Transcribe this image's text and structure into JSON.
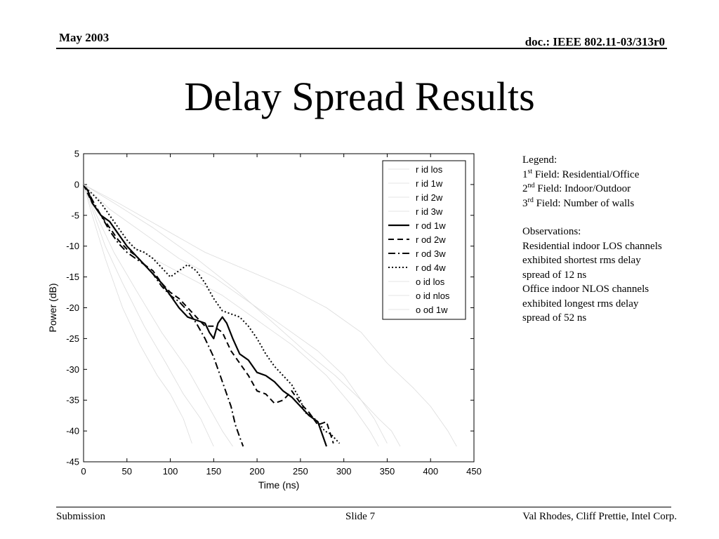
{
  "header": {
    "date": "May 2003",
    "doc": "doc.: IEEE 802.11-03/313r0"
  },
  "title": "Delay Spread Results",
  "notes": {
    "legend_heading": "Legend:",
    "fields": [
      {
        "ord": "1",
        "suffix": "st",
        "text": " Field: Residential/Office"
      },
      {
        "ord": "2",
        "suffix": "nd",
        "text": " Field: Indoor/Outdoor"
      },
      {
        "ord": "3",
        "suffix": "rd",
        "text": " Field: Number of walls"
      }
    ],
    "observations_heading": "Observations:",
    "observations": [
      "Residential indoor LOS channels",
      "exhibited shortest rms delay",
      "spread of 12 ns",
      "Office indoor NLOS channels",
      "exhibited longest rms delay",
      "spread of 52 ns"
    ]
  },
  "footer": {
    "left": "Submission",
    "center": "Slide 7",
    "right": "Val Rhodes, Cliff Prettie, Intel Corp."
  },
  "chart_data": {
    "type": "line",
    "xlabel": "Time (ns)",
    "ylabel": "Power (dB)",
    "xlim": [
      0,
      450
    ],
    "ylim": [
      -45,
      5
    ],
    "xticks": [
      0,
      50,
      100,
      150,
      200,
      250,
      300,
      350,
      400,
      450
    ],
    "yticks": [
      5,
      0,
      -5,
      -10,
      -15,
      -20,
      -25,
      -30,
      -35,
      -40,
      -45
    ],
    "grid": false,
    "legend_position": "top-right",
    "series": [
      {
        "name": "r id los",
        "color": "#dcdcdc",
        "dash": "solid",
        "width": 0.8,
        "points": [
          [
            0,
            0
          ],
          [
            10,
            -5
          ],
          [
            25,
            -12
          ],
          [
            45,
            -20
          ],
          [
            65,
            -26
          ],
          [
            85,
            -31
          ],
          [
            100,
            -34
          ],
          [
            115,
            -38
          ],
          [
            125,
            -42
          ]
        ]
      },
      {
        "name": "r id 1w",
        "color": "#dcdcdc",
        "dash": "solid",
        "width": 0.8,
        "points": [
          [
            0,
            0
          ],
          [
            10,
            -4
          ],
          [
            25,
            -10
          ],
          [
            45,
            -16
          ],
          [
            70,
            -23
          ],
          [
            95,
            -29
          ],
          [
            115,
            -34
          ],
          [
            135,
            -38
          ],
          [
            150,
            -42.5
          ]
        ]
      },
      {
        "name": "r id 2w",
        "color": "#dcdcdc",
        "dash": "solid",
        "width": 0.8,
        "points": [
          [
            0,
            0
          ],
          [
            15,
            -5
          ],
          [
            35,
            -11
          ],
          [
            60,
            -17
          ],
          [
            90,
            -24
          ],
          [
            120,
            -30
          ],
          [
            140,
            -35
          ],
          [
            160,
            -40
          ],
          [
            172,
            -42.5
          ]
        ]
      },
      {
        "name": "r id 3w",
        "color": "#dcdcdc",
        "dash": "solid",
        "width": 0.8,
        "points": [
          [
            0,
            0
          ],
          [
            20,
            -5
          ],
          [
            45,
            -9
          ],
          [
            80,
            -12
          ],
          [
            120,
            -15
          ],
          [
            160,
            -18
          ],
          [
            200,
            -22
          ],
          [
            240,
            -26
          ],
          [
            280,
            -31
          ],
          [
            310,
            -36
          ],
          [
            330,
            -40
          ],
          [
            340,
            -42.5
          ]
        ]
      },
      {
        "name": "r od 1w",
        "color": "#000000",
        "dash": "solid",
        "width": 2.2,
        "points": [
          [
            0,
            0
          ],
          [
            5,
            -1
          ],
          [
            10,
            -3
          ],
          [
            20,
            -5
          ],
          [
            30,
            -6
          ],
          [
            40,
            -8
          ],
          [
            50,
            -10
          ],
          [
            60,
            -11.5
          ],
          [
            70,
            -13
          ],
          [
            80,
            -14.5
          ],
          [
            90,
            -16
          ],
          [
            100,
            -18
          ],
          [
            110,
            -20
          ],
          [
            120,
            -21.5
          ],
          [
            130,
            -22
          ],
          [
            140,
            -22.5
          ],
          [
            145,
            -24
          ],
          [
            150,
            -25
          ],
          [
            155,
            -22.5
          ],
          [
            160,
            -21.5
          ],
          [
            165,
            -22.5
          ],
          [
            172,
            -25
          ],
          [
            180,
            -27.5
          ],
          [
            190,
            -28.5
          ],
          [
            200,
            -30.5
          ],
          [
            210,
            -31
          ],
          [
            220,
            -32
          ],
          [
            230,
            -33.5
          ],
          [
            240,
            -34.5
          ],
          [
            250,
            -36
          ],
          [
            260,
            -37.5
          ],
          [
            270,
            -38.5
          ],
          [
            280,
            -42.5
          ]
        ]
      },
      {
        "name": "r od 2w",
        "color": "#000000",
        "dash": "8,5",
        "width": 2,
        "points": [
          [
            0,
            0
          ],
          [
            5,
            -1.5
          ],
          [
            10,
            -3
          ],
          [
            20,
            -5
          ],
          [
            30,
            -7
          ],
          [
            40,
            -9
          ],
          [
            50,
            -10.5
          ],
          [
            60,
            -11.5
          ],
          [
            70,
            -13
          ],
          [
            80,
            -14
          ],
          [
            90,
            -16
          ],
          [
            100,
            -17.5
          ],
          [
            110,
            -18.5
          ],
          [
            120,
            -20
          ],
          [
            130,
            -21.5
          ],
          [
            140,
            -23
          ],
          [
            150,
            -23
          ],
          [
            160,
            -24
          ],
          [
            170,
            -27
          ],
          [
            180,
            -29
          ],
          [
            190,
            -31
          ],
          [
            200,
            -33.5
          ],
          [
            210,
            -34
          ],
          [
            220,
            -35.5
          ],
          [
            230,
            -35
          ],
          [
            240,
            -33.5
          ],
          [
            250,
            -35.5
          ],
          [
            260,
            -37
          ],
          [
            270,
            -39
          ],
          [
            280,
            -38.5
          ],
          [
            288,
            -42
          ]
        ]
      },
      {
        "name": "r od 3w",
        "color": "#000000",
        "dash": "10,4,2,4",
        "width": 2,
        "points": [
          [
            0,
            0
          ],
          [
            5,
            -1
          ],
          [
            10,
            -2.5
          ],
          [
            20,
            -5
          ],
          [
            30,
            -7.5
          ],
          [
            40,
            -9.5
          ],
          [
            50,
            -11
          ],
          [
            60,
            -12
          ],
          [
            70,
            -13
          ],
          [
            80,
            -14.5
          ],
          [
            90,
            -16.5
          ],
          [
            100,
            -18
          ],
          [
            110,
            -19
          ],
          [
            120,
            -20.5
          ],
          [
            130,
            -22.5
          ],
          [
            140,
            -25
          ],
          [
            150,
            -28
          ],
          [
            160,
            -32
          ],
          [
            170,
            -36
          ],
          [
            175,
            -39
          ],
          [
            180,
            -41
          ],
          [
            184,
            -42.5
          ]
        ]
      },
      {
        "name": "r od 4w",
        "color": "#000000",
        "dash": "2,3",
        "width": 2,
        "points": [
          [
            0,
            0
          ],
          [
            10,
            -1.5
          ],
          [
            20,
            -3
          ],
          [
            30,
            -5
          ],
          [
            40,
            -7
          ],
          [
            50,
            -9
          ],
          [
            60,
            -10.5
          ],
          [
            70,
            -11
          ],
          [
            80,
            -12
          ],
          [
            90,
            -13.5
          ],
          [
            100,
            -15
          ],
          [
            110,
            -14
          ],
          [
            120,
            -13
          ],
          [
            130,
            -14
          ],
          [
            140,
            -16
          ],
          [
            150,
            -18.5
          ],
          [
            160,
            -20.5
          ],
          [
            170,
            -21
          ],
          [
            180,
            -21.5
          ],
          [
            190,
            -23
          ],
          [
            200,
            -25
          ],
          [
            210,
            -27.5
          ],
          [
            220,
            -29.5
          ],
          [
            230,
            -31
          ],
          [
            240,
            -32.5
          ],
          [
            250,
            -35
          ],
          [
            255,
            -37
          ],
          [
            262,
            -37.5
          ],
          [
            270,
            -38.5
          ],
          [
            278,
            -40
          ],
          [
            285,
            -40.5
          ],
          [
            295,
            -42
          ]
        ]
      },
      {
        "name": "o id los",
        "color": "#dcdcdc",
        "dash": "solid",
        "width": 0.8,
        "points": [
          [
            0,
            0
          ],
          [
            30,
            -4
          ],
          [
            70,
            -8
          ],
          [
            110,
            -12
          ],
          [
            150,
            -15
          ],
          [
            190,
            -19
          ],
          [
            230,
            -23
          ],
          [
            270,
            -27
          ],
          [
            300,
            -31
          ],
          [
            320,
            -35
          ],
          [
            335,
            -38
          ],
          [
            350,
            -42
          ]
        ]
      },
      {
        "name": "o id nlos",
        "color": "#dcdcdc",
        "dash": "solid",
        "width": 0.8,
        "points": [
          [
            0,
            0
          ],
          [
            40,
            -3
          ],
          [
            90,
            -7
          ],
          [
            140,
            -11
          ],
          [
            190,
            -14
          ],
          [
            240,
            -17
          ],
          [
            280,
            -20
          ],
          [
            320,
            -24
          ],
          [
            350,
            -29
          ],
          [
            380,
            -33
          ],
          [
            400,
            -36
          ],
          [
            420,
            -40
          ],
          [
            430,
            -42.5
          ]
        ]
      },
      {
        "name": "o od 1w",
        "color": "#dcdcdc",
        "dash": "solid",
        "width": 0.8,
        "points": [
          [
            0,
            0
          ],
          [
            35,
            -3
          ],
          [
            80,
            -7
          ],
          [
            130,
            -12
          ],
          [
            175,
            -17
          ],
          [
            215,
            -22
          ],
          [
            255,
            -27
          ],
          [
            290,
            -31
          ],
          [
            320,
            -35
          ],
          [
            340,
            -38
          ],
          [
            355,
            -40
          ],
          [
            365,
            -42.5
          ]
        ]
      }
    ]
  }
}
